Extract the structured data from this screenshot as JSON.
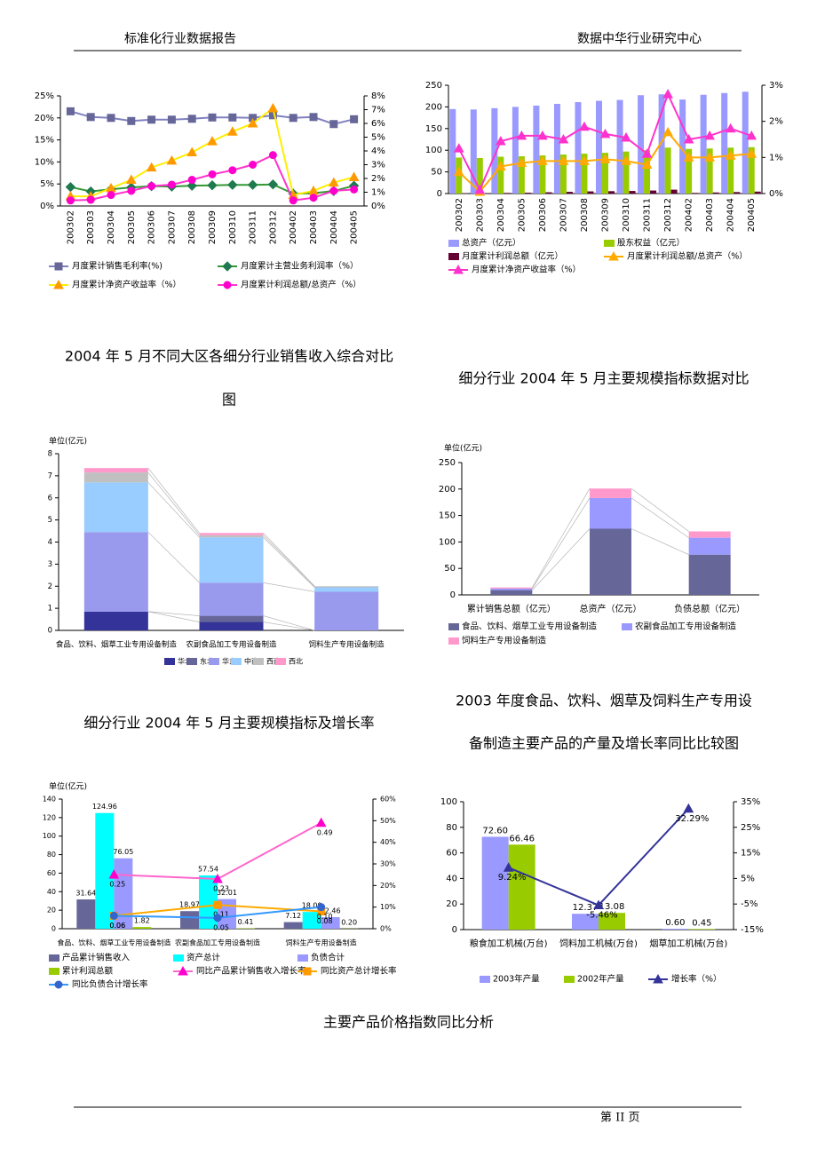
{
  "header": {
    "left": "标准化行业数据报告",
    "right": "数据中华行业研究中心"
  },
  "headings": [
    [
      "2004 年 5 月不同大区各细分行业销售收入综合对比",
      "图"
    ],
    [
      "细分行业 2004 年 5 月主要规模指标数据对比"
    ],
    [
      "细分行业 2004 年 5 月主要规模指标及增长率"
    ],
    [
      "2003 年度食品、饮料、烟草及饲料生产专用设",
      "备制造主要产品的产量及增长率同比比较图"
    ],
    [
      "主要产品价格指数同比分析"
    ]
  ],
  "footer": "第 II 页",
  "chart_data": [
    {
      "type": "line",
      "categories": [
        "200302",
        "200303",
        "200304",
        "200305",
        "200306",
        "200307",
        "200308",
        "200309",
        "200310",
        "200311",
        "200312",
        "200402",
        "200403",
        "200404",
        "200405"
      ],
      "ylim": [
        0,
        25
      ],
      "yticks": [
        {
          "value": 0,
          "label": "0%"
        },
        {
          "value": 5,
          "label": "5%"
        },
        {
          "value": 10,
          "label": "10%"
        },
        {
          "value": 15,
          "label": "15%"
        },
        {
          "value": 20,
          "label": "20%"
        },
        {
          "value": 25,
          "label": "25%"
        }
      ],
      "y2lim": [
        0,
        8
      ],
      "y2ticks": [
        {
          "value": 0,
          "label": "0%"
        },
        {
          "value": 1,
          "label": "1%"
        },
        {
          "value": 2,
          "label": "2%"
        },
        {
          "value": 3,
          "label": "3%"
        },
        {
          "value": 4,
          "label": "4%"
        },
        {
          "value": 5,
          "label": "5%"
        },
        {
          "value": 6,
          "label": "6%"
        },
        {
          "value": 7,
          "label": "7%"
        },
        {
          "value": 8,
          "label": "8%"
        }
      ],
      "series": [
        {
          "name": "月度累计销售毛利率(%)",
          "type": "line",
          "color": "#8080c0",
          "marker": "square",
          "marker_color": "#666699",
          "values": [
            21.5,
            20.2,
            20.0,
            19.3,
            19.6,
            19.6,
            19.8,
            20.1,
            20.1,
            20.0,
            20.6,
            20.0,
            20.2,
            18.6,
            19.7
          ]
        },
        {
          "name": "月度累计主营业务利润率（%）",
          "type": "line",
          "color": "#339933",
          "marker": "diamond",
          "marker_color": "#1f7a4f",
          "values": [
            4.3,
            3.3,
            3.8,
            4.2,
            4.5,
            4.4,
            4.6,
            4.7,
            4.8,
            4.8,
            4.9,
            2.8,
            2.9,
            3.4,
            4.6
          ]
        },
        {
          "name": "月度累计净资产收益率（%）",
          "type": "line",
          "axis": "y2",
          "color": "#ffee00",
          "marker": "triangle",
          "marker_color": "#ff9900",
          "values": [
            0.7,
            0.7,
            1.3,
            1.9,
            2.8,
            3.3,
            3.9,
            4.7,
            5.4,
            6.0,
            7.1,
            0.8,
            1.1,
            1.7,
            2.1
          ]
        },
        {
          "name": "月度累计利润总额/总资产（%）",
          "type": "line",
          "axis": "y2",
          "color": "#ff33cc",
          "marker": "circle",
          "marker_color": "#ff00cc",
          "values": [
            0.4,
            0.45,
            0.8,
            1.1,
            1.45,
            1.55,
            1.9,
            2.3,
            2.6,
            3.0,
            3.7,
            0.4,
            0.6,
            1.1,
            1.2
          ]
        }
      ]
    },
    {
      "type": "bar",
      "categories": [
        "200302",
        "200303",
        "200304",
        "200305",
        "200306",
        "200307",
        "200308",
        "200309",
        "200310",
        "200311",
        "200312",
        "200402",
        "200403",
        "200404",
        "200405"
      ],
      "ylim": [
        0,
        250
      ],
      "yticks": [
        0,
        50,
        100,
        150,
        200,
        250
      ],
      "y2lim": [
        0,
        3
      ],
      "y2ticks": [
        {
          "value": 0,
          "label": "0%"
        },
        {
          "value": 1,
          "label": "1%"
        },
        {
          "value": 2,
          "label": "2%"
        },
        {
          "value": 3,
          "label": "3%"
        }
      ],
      "series": [
        {
          "name": "总资产（亿元）",
          "color": "#9999ff",
          "values": [
            195,
            194,
            197,
            200,
            203,
            207,
            211,
            214,
            216,
            227,
            229,
            217,
            228,
            232,
            235
          ]
        },
        {
          "name": "股东权益（亿元）",
          "color": "#99cc00",
          "values": [
            83,
            82,
            85,
            86,
            88,
            90,
            92,
            94,
            97,
            100,
            106,
            103,
            104,
            106,
            107
          ]
        },
        {
          "name": "月度累计利润总额（亿元）",
          "color": "#660033",
          "values": [
            1,
            0.5,
            1.5,
            2,
            3,
            4,
            5,
            5.5,
            6,
            7,
            9,
            1.5,
            2.5,
            3.5,
            4.5
          ]
        },
        {
          "name": "月度累计利润总额/总资产（%）",
          "type": "line",
          "axis": "y2",
          "color": "#ffaa00",
          "marker": "triangle",
          "marker_color": "#ffaa00",
          "values": [
            0.6,
            0.05,
            0.75,
            0.85,
            0.9,
            0.9,
            0.9,
            0.95,
            0.9,
            0.8,
            1.7,
            1.0,
            1.0,
            1.05,
            1.1
          ]
        },
        {
          "name": "月度累计净资产收益率（%）",
          "type": "line",
          "axis": "y2",
          "color": "#ff33cc",
          "marker": "triangle",
          "marker_color": "#ff33cc",
          "values": [
            1.25,
            0.1,
            1.45,
            1.6,
            1.6,
            1.5,
            1.85,
            1.65,
            1.55,
            1.1,
            2.75,
            1.5,
            1.6,
            1.8,
            1.6
          ]
        }
      ]
    },
    {
      "type": "stacked_bar",
      "y_label": "单位(亿元)",
      "categories": [
        "食品、饮料、烟草工业专用设备制造",
        "农副食品加工专用设备制造",
        "饲料生产专用设备制造"
      ],
      "ylim": [
        0,
        8
      ],
      "yticks": [
        0,
        1,
        2,
        3,
        4,
        5,
        6,
        7,
        8
      ],
      "series": [
        {
          "name": "华北",
          "color": "#333399",
          "values": [
            0.85,
            0.38,
            0
          ]
        },
        {
          "name": "东北",
          "color": "#666699",
          "values": [
            0,
            0.28,
            0
          ]
        },
        {
          "name": "华东",
          "color": "#9999ee",
          "values": [
            3.6,
            1.5,
            1.75
          ]
        },
        {
          "name": "中南",
          "color": "#99ccff",
          "values": [
            2.25,
            2.05,
            0.2
          ]
        },
        {
          "name": "西南",
          "color": "#c0c0c0",
          "values": [
            0.45,
            0.1,
            0.05
          ]
        },
        {
          "name": "西北",
          "color": "#ff99cc",
          "values": [
            0.2,
            0.1,
            0
          ]
        }
      ]
    },
    {
      "type": "stacked_bar",
      "y_label": "单位(亿元)",
      "categories": [
        "累计销售总额（亿元）",
        "总资产（亿元）",
        "负债总额（亿元）"
      ],
      "ylim": [
        0,
        250
      ],
      "yticks": [
        0,
        50,
        100,
        150,
        200,
        250
      ],
      "series": [
        {
          "name": "食品、饮料、烟草工业专用设备制造",
          "color": "#666699",
          "values": [
            9,
            125,
            76
          ]
        },
        {
          "name": "农副食品加工专用设备制造",
          "color": "#9999ff",
          "values": [
            3,
            58,
            32
          ]
        },
        {
          "name": "饲料生产专用设备制造",
          "color": "#ff99cc",
          "values": [
            2,
            18,
            12
          ]
        }
      ]
    },
    {
      "type": "bar",
      "y_label": "单位(亿元)",
      "categories": [
        "食品、饮料、烟草工业专用设备制造",
        "农副食品加工专用设备制造",
        "饲料生产专用设备制造"
      ],
      "ylim": [
        0,
        140
      ],
      "yticks": [
        0,
        20,
        40,
        60,
        80,
        100,
        120,
        140
      ],
      "y2lim": [
        0,
        60
      ],
      "y2ticks": [
        {
          "value": 0,
          "label": "0%"
        },
        {
          "value": 10,
          "label": "10%"
        },
        {
          "value": 20,
          "label": "20%"
        },
        {
          "value": 30,
          "label": "30%"
        },
        {
          "value": 40,
          "label": "40%"
        },
        {
          "value": 50,
          "label": "50%"
        },
        {
          "value": 60,
          "label": "60%"
        }
      ],
      "series": [
        {
          "name": "产品累计销售收入",
          "color": "#666699",
          "values": [
            31.64,
            18.97,
            7.12
          ],
          "value_labels": [
            "31.64",
            "18.97",
            "7.12"
          ]
        },
        {
          "name": "资产总计",
          "color": "#00ffff",
          "values": [
            124.96,
            57.54,
            18.09
          ],
          "value_labels": [
            "124.96",
            "57.54",
            "18.09"
          ]
        },
        {
          "name": "负债合计",
          "color": "#9999ff",
          "values": [
            76.05,
            32.01,
            12.46
          ],
          "value_labels": [
            "76.05",
            "32.01",
            "12.46"
          ]
        },
        {
          "name": "累计利润总额",
          "color": "#99cc00",
          "values": [
            1.82,
            0.41,
            0.2
          ],
          "value_labels": [
            "1.82",
            "0.41",
            "0.20"
          ]
        },
        {
          "name": "同比产品累计销售收入增长率",
          "type": "line",
          "axis": "y2",
          "color": "#ff66cc",
          "marker": "triangle",
          "marker_color": "#ff00cc",
          "values": [
            25,
            23,
            49
          ],
          "value_labels": [
            "0.25",
            "0.23",
            "0.49"
          ]
        },
        {
          "name": "同比资产总计增长率",
          "type": "line",
          "axis": "y2",
          "color": "#ffaa00",
          "marker": "square",
          "marker_color": "#ff9900",
          "values": [
            6,
            11,
            8
          ],
          "value_labels": [
            "0.06",
            "0.11",
            "0.08"
          ]
        },
        {
          "name": "同比负债合计增长率",
          "type": "line",
          "axis": "y2",
          "color": "#3399ff",
          "marker": "circle",
          "marker_color": "#3366cc",
          "values": [
            6,
            5,
            10
          ],
          "value_labels": [
            "0.06",
            "0.05",
            "0.10"
          ]
        }
      ]
    },
    {
      "type": "bar",
      "categories": [
        "粮食加工机械(万台)",
        "饲料加工机械(万台)",
        "烟草加工机械(万台)"
      ],
      "ylim": [
        0,
        100
      ],
      "yticks": [
        0,
        20,
        40,
        60,
        80,
        100
      ],
      "y2lim": [
        -15,
        35
      ],
      "y2ticks": [
        {
          "value": -15,
          "label": "-15%"
        },
        {
          "value": -5,
          "label": "-5%"
        },
        {
          "value": 5,
          "label": "5%"
        },
        {
          "value": 15,
          "label": "15%"
        },
        {
          "value": 25,
          "label": "25%"
        },
        {
          "value": 35,
          "label": "35%"
        }
      ],
      "series": [
        {
          "name": "2003年产量",
          "color": "#9999ff",
          "values": [
            72.6,
            12.37,
            0.6
          ],
          "value_labels": [
            "72.60",
            "12.37",
            "0.60"
          ]
        },
        {
          "name": "2002年产量",
          "color": "#99cc00",
          "values": [
            66.46,
            13.08,
            0.45
          ],
          "value_labels": [
            "66.46",
            "13.08",
            "0.45"
          ]
        },
        {
          "name": "增长率（%）",
          "type": "line",
          "axis": "y2",
          "color": "#333399",
          "marker": "triangle",
          "marker_color": "#333399",
          "values": [
            9.24,
            -5.46,
            32.29
          ],
          "value_labels": [
            "9.24%",
            "-5.46%",
            "32.29%"
          ]
        }
      ]
    }
  ]
}
